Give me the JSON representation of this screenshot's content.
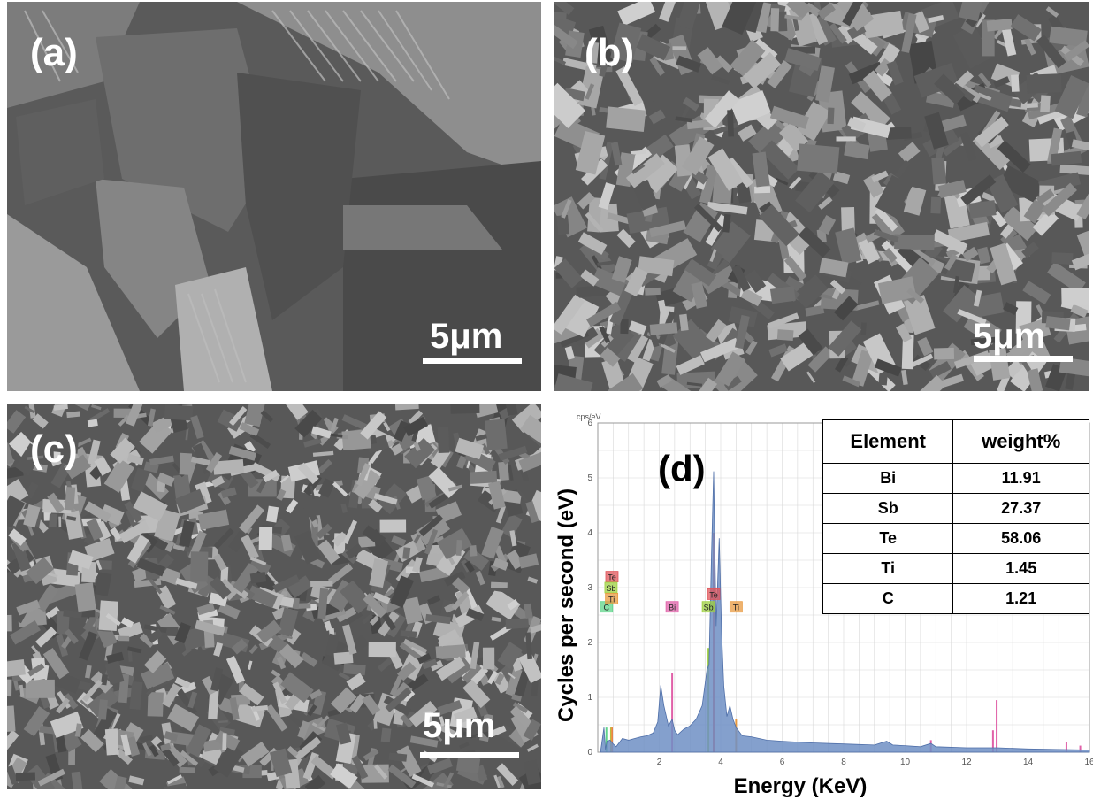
{
  "panels": {
    "a": {
      "label": "(a)",
      "scale_bar": "5μm"
    },
    "b": {
      "label": "(b)",
      "scale_bar": "5μm"
    },
    "c": {
      "label": "(c)",
      "scale_bar": "5μm"
    },
    "d": {
      "label": "(d)"
    }
  },
  "chart_data": {
    "type": "bar",
    "title": "",
    "xlabel": "Energy (KeV)",
    "ylabel": "Cycles per second (eV)",
    "y_unit_label": "cps/eV",
    "xlim": [
      0,
      16
    ],
    "ylim": [
      0,
      6
    ],
    "x_ticks": [
      "2",
      "4",
      "6",
      "8",
      "10",
      "12",
      "14",
      "16"
    ],
    "y_ticks": [
      "0",
      "1",
      "2",
      "3",
      "4",
      "5",
      "6"
    ],
    "spectrum": {
      "energy": [
        0.1,
        0.2,
        0.25,
        0.3,
        0.4,
        0.5,
        0.6,
        0.8,
        1.0,
        1.2,
        1.4,
        1.6,
        1.8,
        1.95,
        2.05,
        2.15,
        2.3,
        2.42,
        2.5,
        2.6,
        2.8,
        3.0,
        3.2,
        3.4,
        3.55,
        3.62,
        3.7,
        3.77,
        3.85,
        3.95,
        4.03,
        4.1,
        4.2,
        4.3,
        4.4,
        4.5,
        4.7,
        5.0,
        5.5,
        6.0,
        7.0,
        8.0,
        9.0,
        9.4,
        9.6,
        10.0,
        10.5,
        10.84,
        11.0,
        12.0,
        13.0,
        14.0,
        15.0,
        16.0
      ],
      "counts": [
        0.05,
        0.45,
        0.05,
        0.2,
        0.22,
        0.15,
        0.1,
        0.25,
        0.22,
        0.25,
        0.28,
        0.3,
        0.35,
        0.55,
        1.22,
        0.85,
        0.48,
        0.6,
        0.4,
        0.32,
        0.42,
        0.48,
        0.6,
        0.85,
        1.5,
        1.6,
        3.6,
        5.12,
        2.3,
        3.9,
        2.2,
        1.2,
        0.65,
        0.85,
        0.6,
        0.45,
        0.3,
        0.28,
        0.22,
        0.2,
        0.17,
        0.15,
        0.13,
        0.2,
        0.13,
        0.12,
        0.1,
        0.16,
        0.1,
        0.08,
        0.08,
        0.06,
        0.05,
        0.04
      ]
    },
    "element_lines": [
      {
        "element": "C",
        "x": 0.28,
        "height": 0.45,
        "color": "#5fd48a",
        "marker_y": 2.65
      },
      {
        "element": "Te",
        "x": 0.46,
        "height": 0.45,
        "color": "#e0545a",
        "marker_y": 3.2
      },
      {
        "element": "Sb",
        "x": 0.43,
        "height": 0.45,
        "color": "#9ed040",
        "marker_y": 3.0
      },
      {
        "element": "Ti",
        "x": 0.45,
        "height": 0.45,
        "color": "#e89a40",
        "marker_y": 2.8
      },
      {
        "element": "Bi",
        "x": 2.42,
        "height": 1.45,
        "color": "#e060a8",
        "marker_y": 2.65
      },
      {
        "element": "Sb",
        "x": 3.6,
        "height": 1.9,
        "color": "#9ed040",
        "marker_y": 2.65
      },
      {
        "element": "Te",
        "x": 3.77,
        "height": 4.0,
        "color": "#e0545a",
        "marker_y": 2.88
      },
      {
        "element": "Ti",
        "x": 4.5,
        "height": 0.6,
        "color": "#e89a40",
        "marker_y": 2.65
      },
      {
        "element": "Bi",
        "x": 10.84,
        "height": 0.22,
        "color": "#e060a8",
        "marker_y": 2.65
      },
      {
        "element": "",
        "x": 12.98,
        "height": 0.95,
        "color": "#e060a8"
      },
      {
        "element": "",
        "x": 12.86,
        "height": 0.4,
        "color": "#e060a8"
      },
      {
        "element": "",
        "x": 15.25,
        "height": 0.18,
        "color": "#e060a8"
      },
      {
        "element": "",
        "x": 15.7,
        "height": 0.12,
        "color": "#e060a8"
      }
    ],
    "table": {
      "headers": [
        "Element",
        "weight%"
      ],
      "rows": [
        [
          "Bi",
          "11.91"
        ],
        [
          "Sb",
          "27.37"
        ],
        [
          "Te",
          "58.06"
        ],
        [
          "Ti",
          "1.45"
        ],
        [
          "C",
          "1.21"
        ]
      ]
    },
    "colors": {
      "spectrum_fill": "#6f8fc4",
      "grid": "#d8d8d8"
    }
  }
}
